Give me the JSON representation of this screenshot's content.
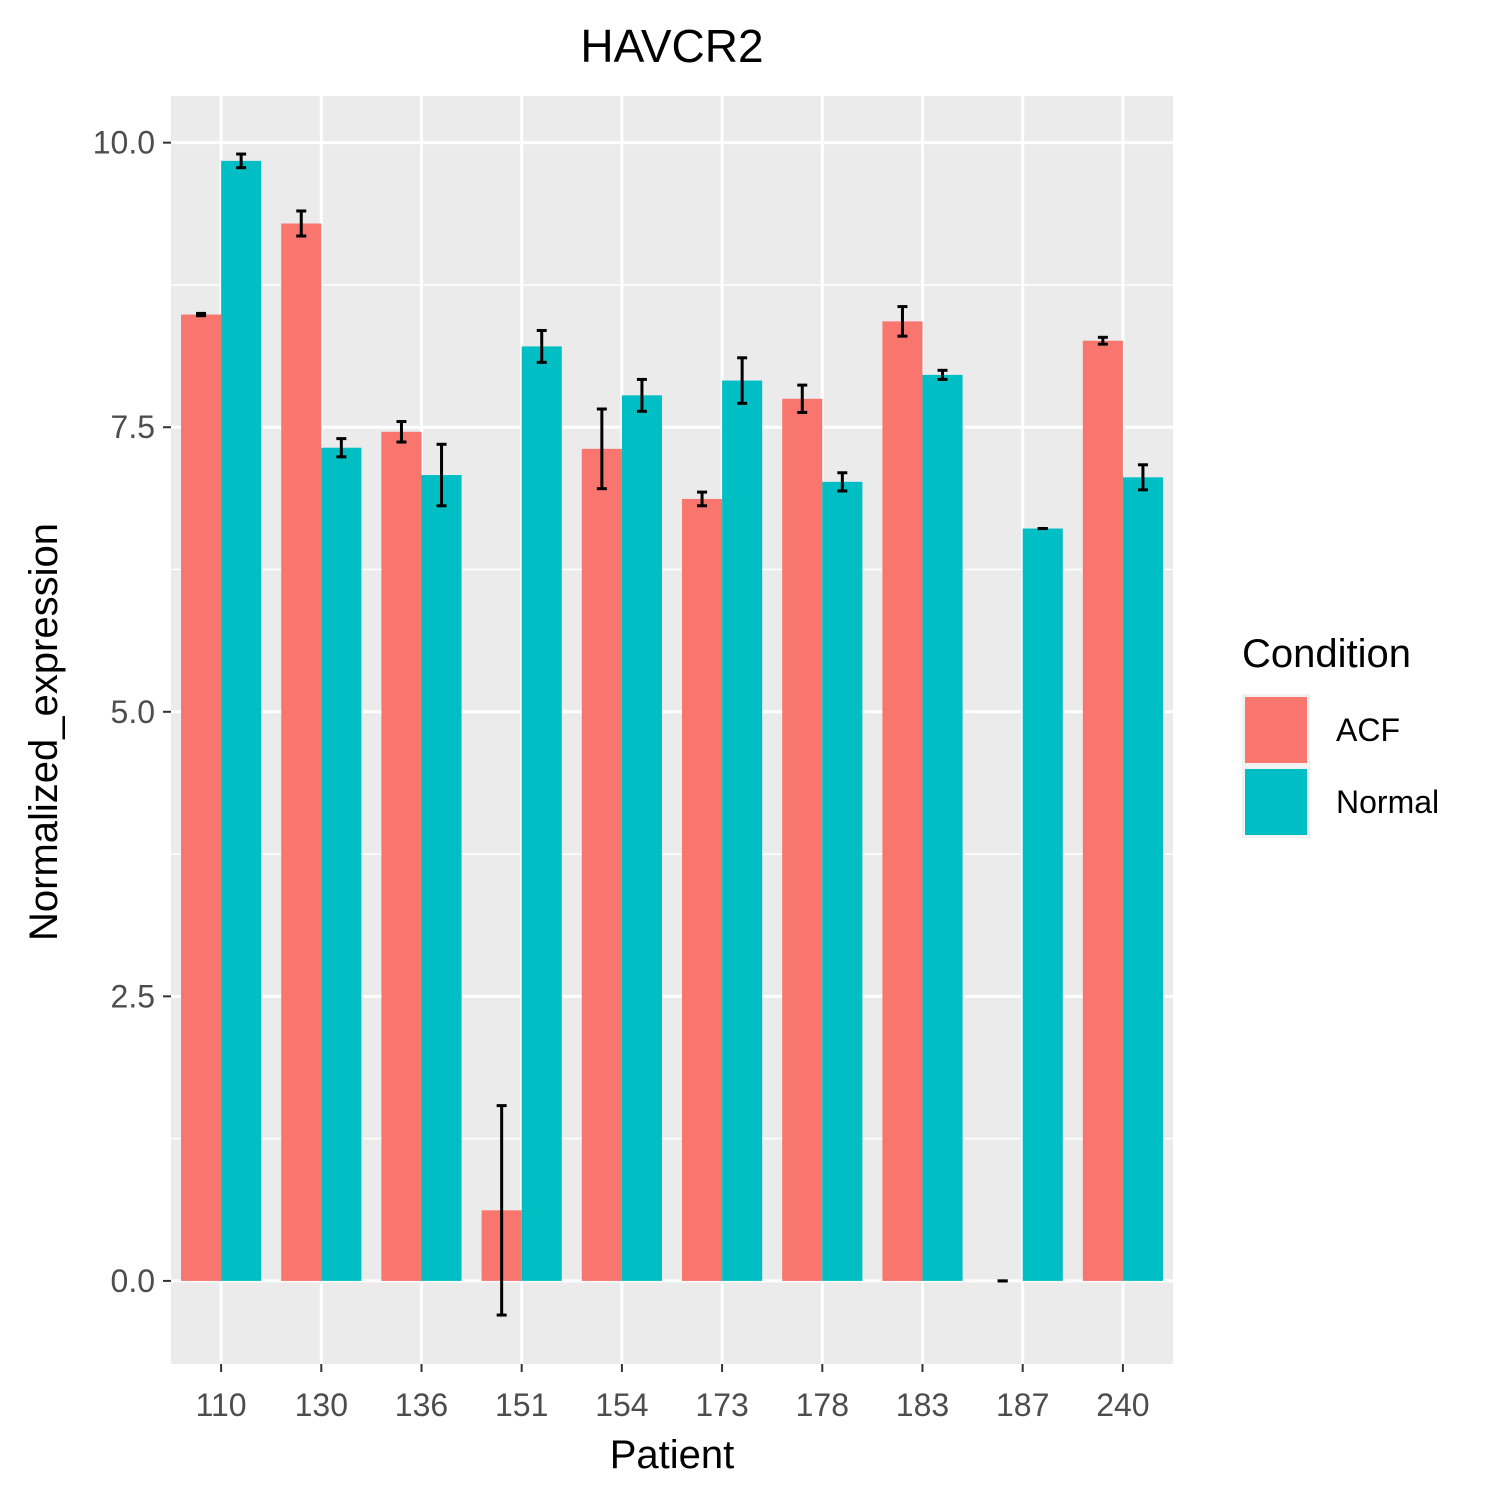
{
  "chart_data": {
    "type": "bar",
    "title": "HAVCR2",
    "xlabel": "Patient",
    "ylabel": "Normalized_expression",
    "categories": [
      "110",
      "130",
      "136",
      "151",
      "154",
      "173",
      "178",
      "183",
      "187",
      "240"
    ],
    "ylim": [
      -0.73,
      10.41
    ],
    "yticks": [
      "0.0",
      "2.5",
      "5.0",
      "7.5",
      "10.0"
    ],
    "grid": true,
    "legend": {
      "title": "Condition",
      "position": "right"
    },
    "series": [
      {
        "name": "ACF",
        "color": "#F8766D",
        "values": [
          8.49,
          9.29,
          7.46,
          0.62,
          7.31,
          6.87,
          7.75,
          8.43,
          0.0,
          8.26
        ],
        "errors": [
          0.01,
          0.11,
          0.09,
          0.92,
          0.35,
          0.06,
          0.12,
          0.13,
          0.0,
          0.03
        ]
      },
      {
        "name": "Normal",
        "color": "#00BFC4",
        "values": [
          9.84,
          7.32,
          7.08,
          8.21,
          7.78,
          7.91,
          7.02,
          7.96,
          6.61,
          7.06
        ],
        "errors": [
          0.06,
          0.08,
          0.27,
          0.14,
          0.14,
          0.2,
          0.08,
          0.04,
          0.0,
          0.11
        ]
      }
    ]
  }
}
